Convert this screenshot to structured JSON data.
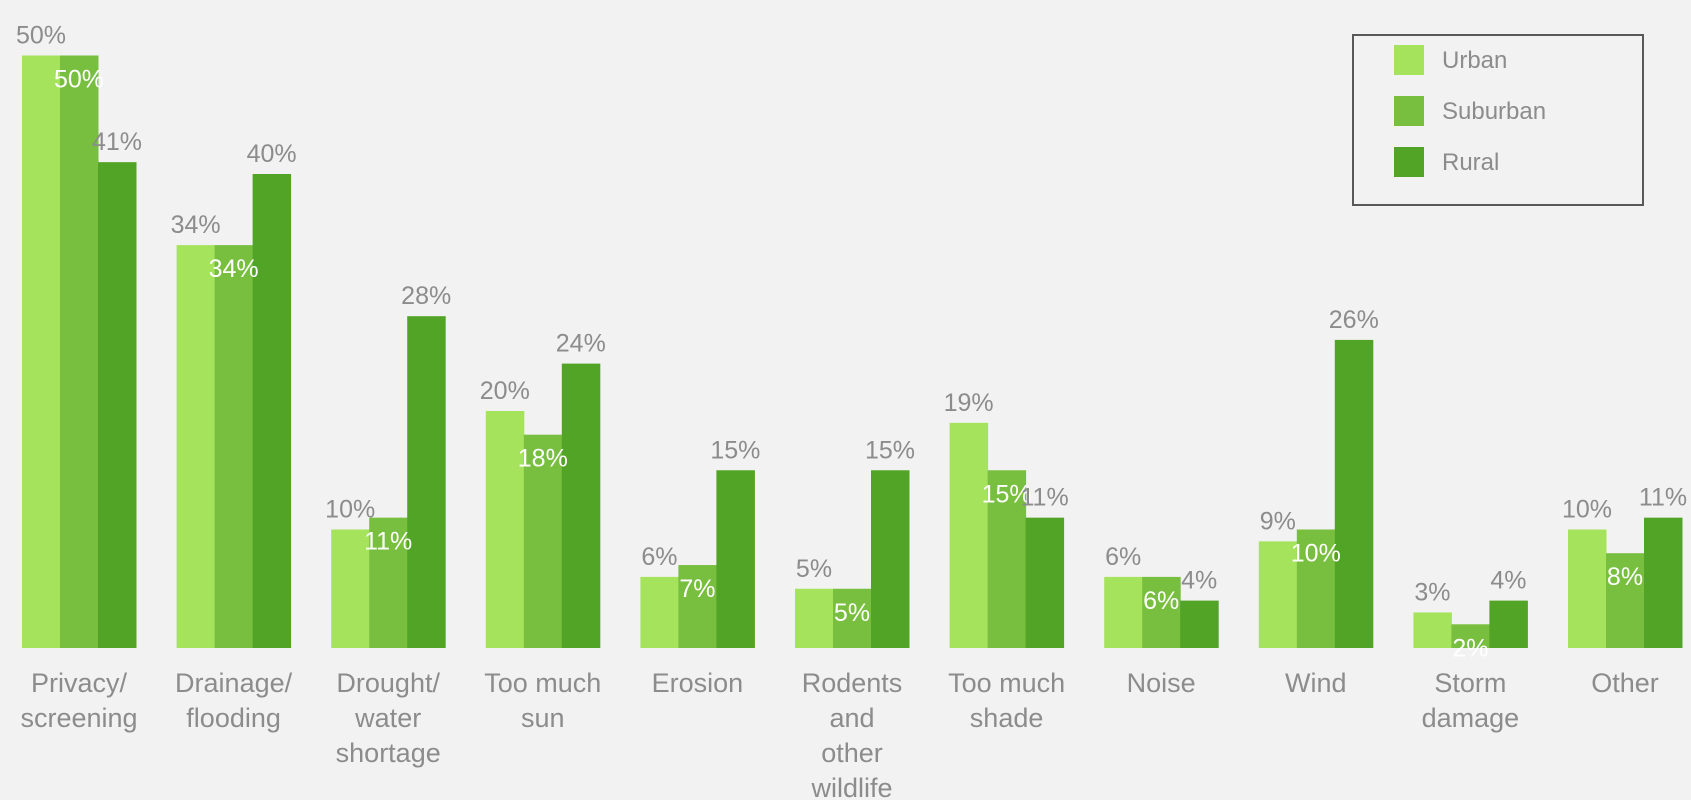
{
  "chart_data": {
    "type": "bar",
    "categories": [
      [
        "Privacy/",
        "screening"
      ],
      [
        "Drainage/",
        "flooding"
      ],
      [
        "Drought/",
        "water",
        "shortage"
      ],
      [
        "Too much",
        "sun"
      ],
      [
        "Erosion"
      ],
      [
        "Rodents",
        "and",
        "other",
        "wildlife"
      ],
      [
        "Too much",
        "shade"
      ],
      [
        "Noise"
      ],
      [
        "Wind"
      ],
      [
        "Storm",
        "damage"
      ],
      [
        "Other"
      ]
    ],
    "series": [
      {
        "name": "Urban",
        "color": "#a6e35c",
        "values": [
          50,
          34,
          10,
          20,
          6,
          5,
          19,
          6,
          9,
          3,
          10
        ],
        "labels": [
          "50%",
          "34%",
          "10%",
          "20%",
          "6%",
          "5%",
          "19%",
          "6%",
          "9%",
          "3%",
          "10%"
        ]
      },
      {
        "name": "Suburban",
        "color": "#78bf3f",
        "values": [
          50,
          34,
          11,
          18,
          7,
          5,
          15,
          6,
          10,
          2,
          8
        ],
        "labels": [
          "50%",
          "34%",
          "11%",
          "18%",
          "7%",
          "5%",
          "15%",
          "6%",
          "10%",
          "2%",
          "8%"
        ]
      },
      {
        "name": "Rural",
        "color": "#52a426",
        "values": [
          41,
          40,
          28,
          24,
          15,
          15,
          11,
          4,
          26,
          4,
          11
        ],
        "labels": [
          "41%",
          "40%",
          "28%",
          "24%",
          "15%",
          "15%",
          "11%",
          "4%",
          "26%",
          "4%",
          "11%"
        ]
      }
    ],
    "ylim": [
      0,
      50
    ],
    "grid": false,
    "legend_position": "top-right",
    "value_label_colors": {
      "above": "#8c8c8c",
      "inside": "#ffffff"
    }
  }
}
